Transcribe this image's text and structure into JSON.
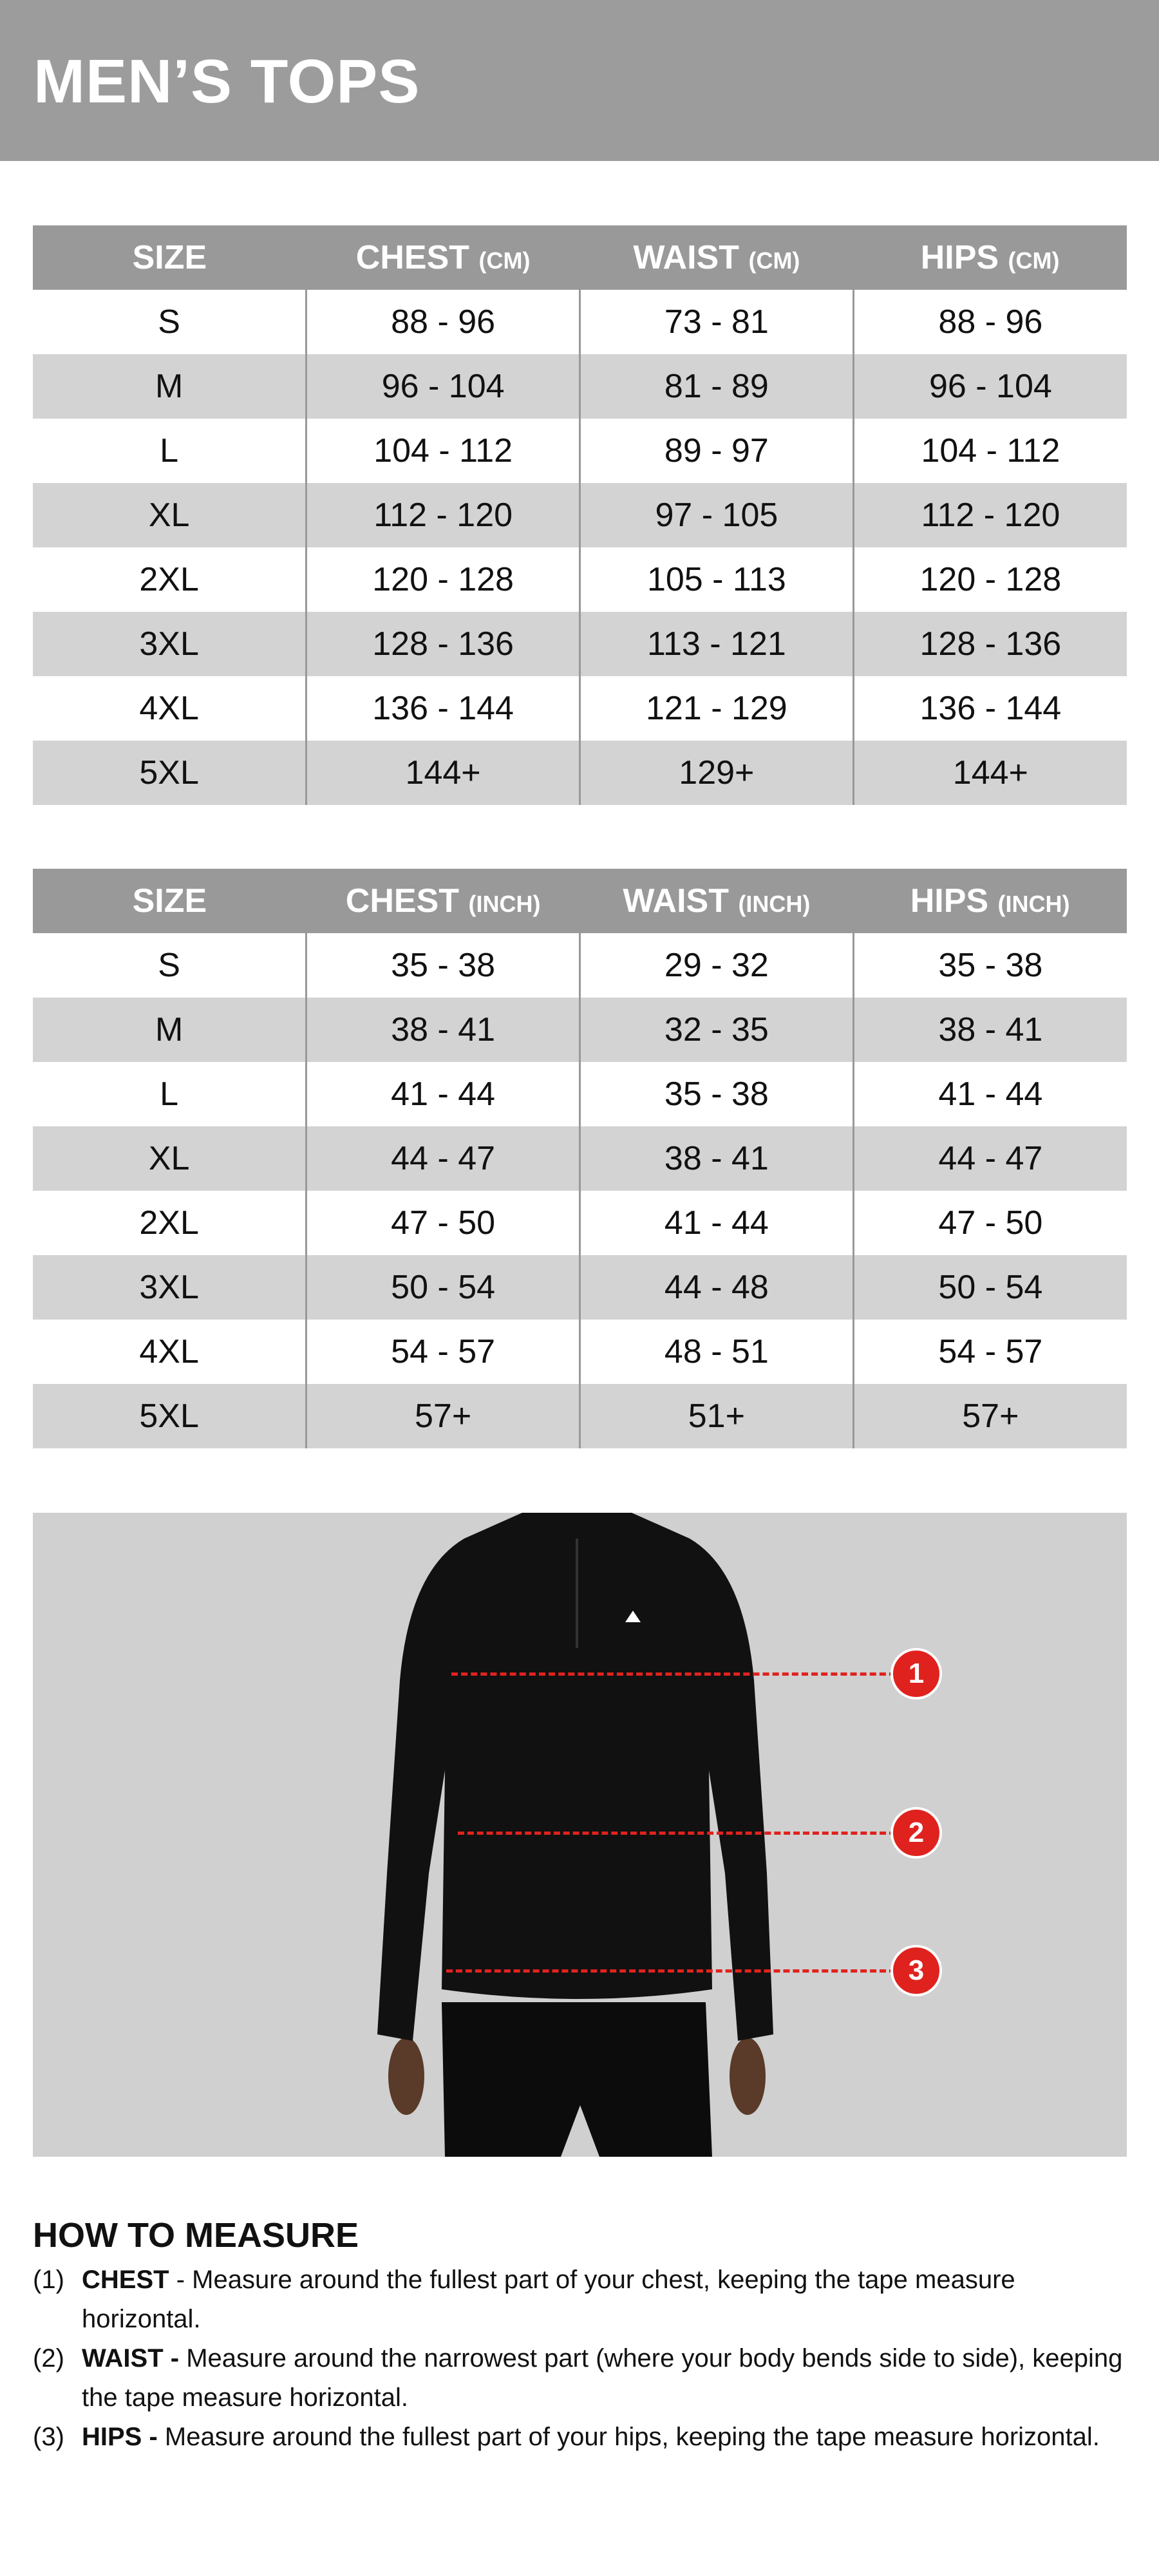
{
  "title": "MEN’S TOPS",
  "tables": [
    {
      "headers": [
        {
          "label": "SIZE",
          "unit": ""
        },
        {
          "label": "CHEST",
          "unit": "(CM)"
        },
        {
          "label": "WAIST",
          "unit": "(CM)"
        },
        {
          "label": "HIPS",
          "unit": "(CM)"
        }
      ],
      "rows": [
        [
          "S",
          "88 - 96",
          "73 - 81",
          "88 - 96"
        ],
        [
          "M",
          "96 - 104",
          "81 - 89",
          "96 - 104"
        ],
        [
          "L",
          "104 - 112",
          "89 - 97",
          "104 - 112"
        ],
        [
          "XL",
          "112 - 120",
          "97 - 105",
          "112 - 120"
        ],
        [
          "2XL",
          "120 - 128",
          "105 - 113",
          "120 - 128"
        ],
        [
          "3XL",
          "128 - 136",
          "113 - 121",
          "128 - 136"
        ],
        [
          "4XL",
          "136 - 144",
          "121 - 129",
          "136 - 144"
        ],
        [
          "5XL",
          "144+",
          "129+",
          "144+"
        ]
      ]
    },
    {
      "headers": [
        {
          "label": "SIZE",
          "unit": ""
        },
        {
          "label": "CHEST",
          "unit": "(INCH)"
        },
        {
          "label": "WAIST",
          "unit": "(INCH)"
        },
        {
          "label": "HIPS",
          "unit": "(INCH)"
        }
      ],
      "rows": [
        [
          "S",
          "35 - 38",
          "29 - 32",
          "35 - 38"
        ],
        [
          "M",
          "38 - 41",
          "32 - 35",
          "38 - 41"
        ],
        [
          "L",
          "41 - 44",
          "35 - 38",
          "41 - 44"
        ],
        [
          "XL",
          "44 - 47",
          "38 - 41",
          "44 - 47"
        ],
        [
          "2XL",
          "47 - 50",
          "41 - 44",
          "47 - 50"
        ],
        [
          "3XL",
          "50 - 54",
          "44 - 48",
          "50 - 54"
        ],
        [
          "4XL",
          "54 - 57",
          "48 - 51",
          "54 - 57"
        ],
        [
          "5XL",
          "57+",
          "51+",
          "57+"
        ]
      ]
    }
  ],
  "markers": [
    "1",
    "2",
    "3"
  ],
  "colors": {
    "banner": "#9c9c9c",
    "header": "#999999",
    "stripe": "#d3d3d3",
    "marker": "#e0221e"
  },
  "how_to": {
    "heading": "HOW TO MEASURE",
    "items": [
      {
        "num": "(1)",
        "term": "CHEST",
        "text": " - Measure around the fullest part of your chest, keeping the tape measure horizontal."
      },
      {
        "num": "(2)",
        "term": "WAIST -",
        "text": " Measure around the narrowest part (where your body bends side to side), keeping the tape measure horizontal."
      },
      {
        "num": "(3)",
        "term": "HIPS -",
        "text": " Measure around the fullest part of your hips, keeping the tape measure horizontal."
      }
    ]
  }
}
